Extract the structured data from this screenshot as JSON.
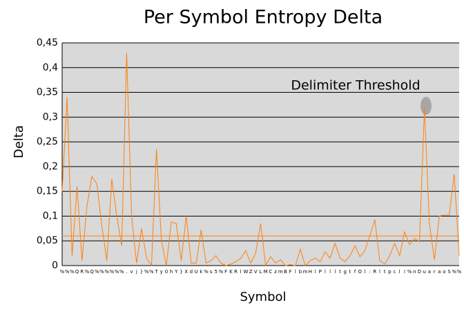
{
  "chart_data": {
    "type": "line",
    "title": "Per Symbol Entropy Delta",
    "x_label": "Symbol",
    "y_label": "Delta",
    "categories": [
      "%",
      "%",
      "%",
      "Q",
      "R",
      "%",
      "Q",
      "%",
      "%",
      "%",
      "%",
      "%",
      "%",
      ".",
      "v",
      "j",
      "}",
      "%",
      "%",
      "T",
      "y",
      "0",
      "h",
      "Y",
      "}",
      "X",
      "d",
      "U",
      "k",
      "%",
      "s",
      "5",
      "%",
      "F",
      "K",
      "R",
      "l",
      "W",
      "Z",
      "V",
      "L",
      "M",
      "C",
      "z",
      "m",
      "B",
      "F",
      "l",
      "b",
      "m",
      "H",
      "l",
      "P",
      "l",
      "l",
      "l",
      "t",
      "g",
      "t",
      "f",
      "O",
      "l",
      ":",
      "R",
      "l",
      "t",
      "p",
      "c",
      "l",
      "i",
      "%",
      "n",
      "D",
      "u",
      "a",
      "r",
      "a",
      "o",
      "S",
      "%",
      "%"
    ],
    "values": [
      0.15,
      0.34,
      0.02,
      0.16,
      0.01,
      0.12,
      0.18,
      0.165,
      0.08,
      0.01,
      0.175,
      0.1,
      0.04,
      0.43,
      0.1,
      0.005,
      0.075,
      0.015,
      0.0,
      0.235,
      0.05,
      0.0,
      0.088,
      0.085,
      0.01,
      0.1,
      0.005,
      0.005,
      0.072,
      0.005,
      0.01,
      0.02,
      0.005,
      0.0,
      0.003,
      0.008,
      0.015,
      0.03,
      0.005,
      0.025,
      0.085,
      0.0,
      0.018,
      0.005,
      0.012,
      0.0,
      0.002,
      0.0,
      0.033,
      0.0,
      0.01,
      0.015,
      0.008,
      0.028,
      0.015,
      0.045,
      0.015,
      0.008,
      0.02,
      0.04,
      0.018,
      0.03,
      0.06,
      0.093,
      0.01,
      0.003,
      0.02,
      0.045,
      0.02,
      0.068,
      0.042,
      0.055,
      0.048,
      0.318,
      0.085,
      0.012,
      0.1,
      0.102,
      0.102,
      0.185,
      0.02
    ],
    "color": "#ff7f0e",
    "threshold": 0.06,
    "annotation": "Delimiter Threshold",
    "ylim": [
      0,
      0.45
    ],
    "yticks": [
      0,
      {
        "value": 0.05,
        "label": "0,05"
      },
      {
        "value": 0.1,
        "label": "0,1"
      },
      {
        "value": 0.15,
        "label": "0,15"
      },
      {
        "value": 0.2,
        "label": "0,2"
      },
      {
        "value": 0.25,
        "label": "0,25"
      },
      {
        "value": 0.3,
        "label": "0,3"
      },
      {
        "value": 0.35,
        "label": "0,35"
      },
      {
        "value": 0.4,
        "label": "0,4"
      },
      {
        "value": 0.45,
        "label": "0,45"
      }
    ],
    "grid": true
  }
}
